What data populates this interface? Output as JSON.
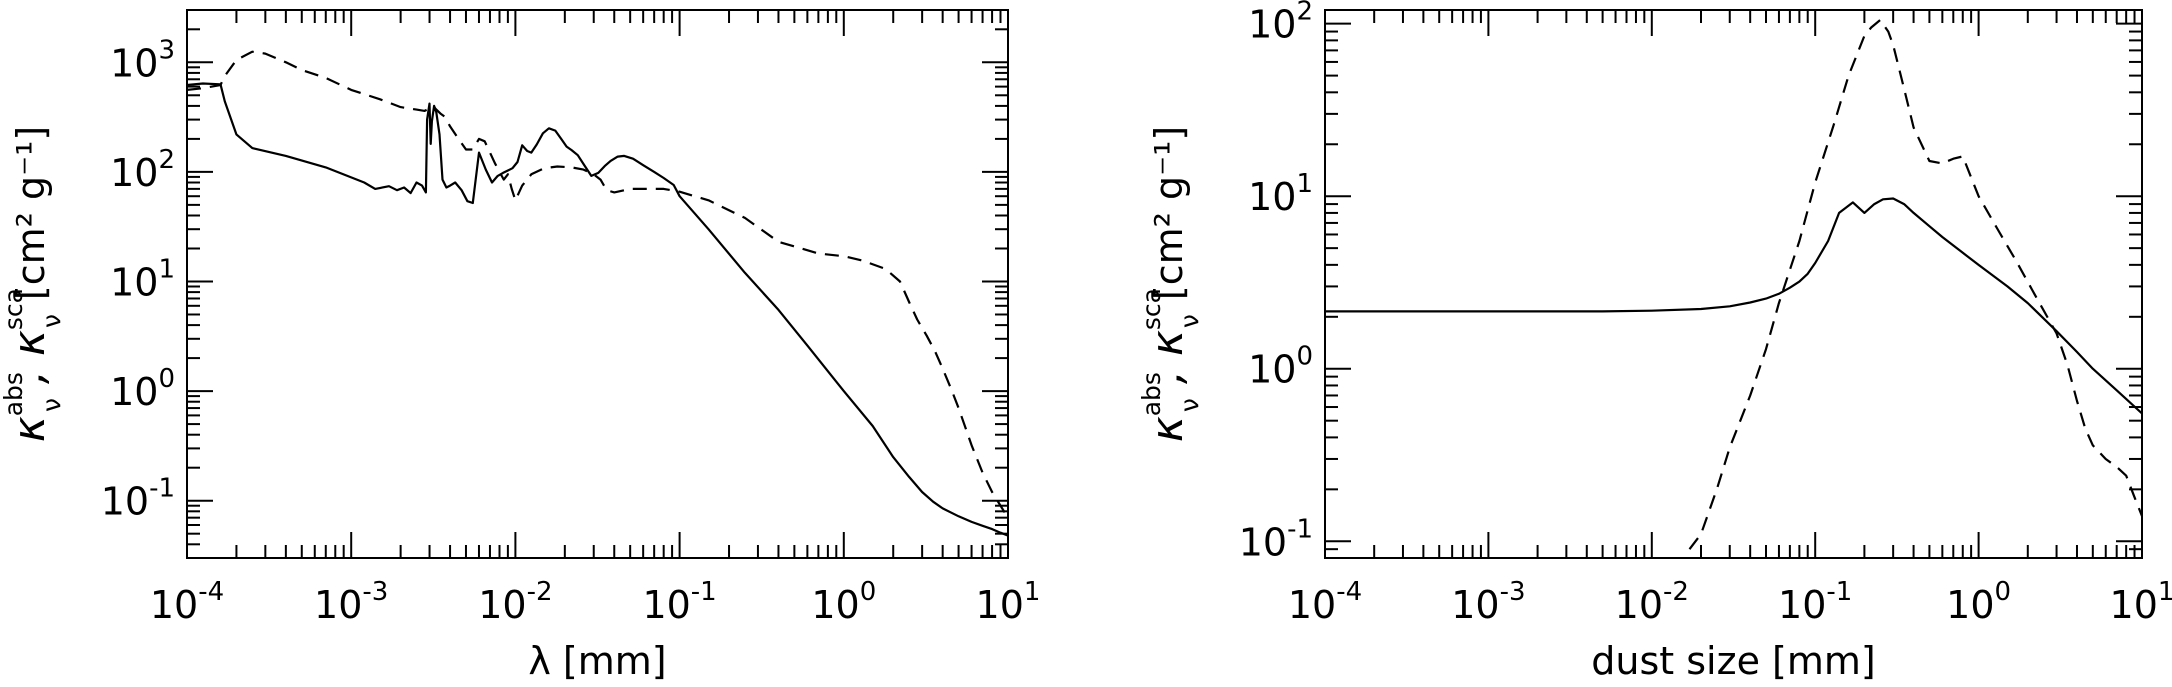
{
  "chart_data": [
    {
      "type": "line",
      "xlabel": "λ [mm]",
      "ylabel": {
        "symbol_abs": "κ",
        "sub_abs": "ν",
        "sup_abs": "abs",
        "separator": ",",
        "symbol_sca": "κ",
        "sub_sca": "ν",
        "sup_sca": "sca",
        "units": "[cm² g⁻¹]"
      },
      "xscale": "log",
      "yscale": "log",
      "xlim": [
        0.0001,
        10
      ],
      "ylim": [
        0.03,
        3000
      ],
      "xticks": [
        {
          "value": 0.0001,
          "base": "10",
          "exp": "-4"
        },
        {
          "value": 0.001,
          "base": "10",
          "exp": "-3"
        },
        {
          "value": 0.01,
          "base": "10",
          "exp": "-2"
        },
        {
          "value": 0.1,
          "base": "10",
          "exp": "-1"
        },
        {
          "value": 1,
          "base": "10",
          "exp": "0"
        },
        {
          "value": 10,
          "base": "10",
          "exp": "1"
        }
      ],
      "yticks": [
        {
          "value": 0.1,
          "base": "10",
          "exp": "-1"
        },
        {
          "value": 1,
          "base": "10",
          "exp": "0"
        },
        {
          "value": 10,
          "base": "10",
          "exp": "1"
        },
        {
          "value": 100,
          "base": "10",
          "exp": "2"
        },
        {
          "value": 1000,
          "base": "10",
          "exp": "3"
        }
      ],
      "series": [
        {
          "style": "solid",
          "x": [
            0.0001,
            0.000125,
            0.00016,
            0.00017,
            0.0002,
            0.00025,
            0.0004,
            0.0007,
            0.0012,
            0.0014,
            0.0017,
            0.0019,
            0.0021,
            0.0023,
            0.0025,
            0.0027,
            0.00285,
            0.0029,
            0.003,
            0.00305,
            0.0031,
            0.0032,
            0.0033,
            0.00345,
            0.0036,
            0.0038,
            0.004,
            0.0043,
            0.0047,
            0.0051,
            0.0055,
            0.006,
            0.0066,
            0.0072,
            0.0078,
            0.0084,
            0.009,
            0.0096,
            0.0103,
            0.011,
            0.0118,
            0.0125,
            0.0135,
            0.0147,
            0.016,
            0.0175,
            0.019,
            0.0205,
            0.022,
            0.024,
            0.026,
            0.029,
            0.032,
            0.035,
            0.038,
            0.042,
            0.046,
            0.052,
            0.06,
            0.07,
            0.08,
            0.092,
            0.1,
            0.15,
            0.25,
            0.4,
            0.6,
            1.0,
            1.5,
            2.0,
            2.5,
            3.0,
            3.5,
            4.0,
            5.0,
            6.0,
            7.0,
            8.0,
            9.0,
            10.0
          ],
          "y": [
            620,
            640,
            630,
            440,
            220,
            165,
            140,
            110,
            80,
            70,
            74,
            68,
            72,
            64,
            80,
            75,
            65,
            300,
            420,
            180,
            290,
            400,
            350,
            220,
            85,
            72,
            75,
            80,
            68,
            54,
            52,
            150,
            105,
            80,
            92,
            98,
            103,
            108,
            123,
            175,
            155,
            150,
            178,
            225,
            250,
            238,
            200,
            170,
            158,
            142,
            118,
            92,
            98,
            113,
            126,
            138,
            140,
            132,
            115,
            100,
            88,
            76,
            60,
            30,
            12,
            5.5,
            2.6,
            1.0,
            0.48,
            0.25,
            0.165,
            0.12,
            0.098,
            0.085,
            0.072,
            0.064,
            0.059,
            0.055,
            0.051,
            0.048
          ]
        },
        {
          "style": "dashed",
          "x": [
            0.0001,
            0.000125,
            0.00016,
            0.00017,
            0.0002,
            0.00025,
            0.0003,
            0.0004,
            0.0005,
            0.0007,
            0.001,
            0.0015,
            0.002,
            0.0025,
            0.0028,
            0.0029,
            0.003,
            0.0031,
            0.0032,
            0.0033,
            0.0035,
            0.0037,
            0.004,
            0.0045,
            0.005,
            0.0055,
            0.006,
            0.0065,
            0.007,
            0.0075,
            0.008,
            0.0085,
            0.009,
            0.0095,
            0.01,
            0.011,
            0.0125,
            0.015,
            0.018,
            0.022,
            0.026,
            0.03,
            0.033,
            0.036,
            0.04,
            0.05,
            0.065,
            0.08,
            0.1,
            0.15,
            0.25,
            0.4,
            0.7,
            1.0,
            1.3,
            1.8,
            2.2,
            2.5,
            2.8,
            3.2,
            3.6,
            4.0,
            4.5,
            5.0,
            6.0,
            7.0,
            8.0,
            9.0,
            10.0
          ],
          "y": [
            560,
            580,
            620,
            750,
            1050,
            1250,
            1200,
            1000,
            850,
            720,
            560,
            460,
            390,
            370,
            360,
            370,
            380,
            400,
            390,
            370,
            340,
            320,
            260,
            200,
            160,
            160,
            200,
            190,
            150,
            120,
            100,
            85,
            95,
            70,
            55,
            75,
            95,
            108,
            112,
            110,
            105,
            95,
            85,
            68,
            65,
            70,
            70,
            70,
            66,
            55,
            38,
            23,
            18,
            17,
            15.5,
            13,
            10,
            6.5,
            4.5,
            3.2,
            2.3,
            1.6,
            1.05,
            0.7,
            0.32,
            0.18,
            0.12,
            0.09,
            0.07
          ]
        }
      ]
    },
    {
      "type": "line",
      "xlabel": "dust size [mm]",
      "ylabel": {
        "symbol_abs": "κ",
        "sub_abs": "ν",
        "sup_abs": "abs",
        "separator": ",",
        "symbol_sca": "κ",
        "sub_sca": "ν",
        "sup_sca": "sca",
        "units": "[cm² g⁻¹]"
      },
      "xscale": "log",
      "yscale": "log",
      "xlim": [
        0.0001,
        10
      ],
      "ylim": [
        0.08,
        120
      ],
      "xticks": [
        {
          "value": 0.0001,
          "base": "10",
          "exp": "-4"
        },
        {
          "value": 0.001,
          "base": "10",
          "exp": "-3"
        },
        {
          "value": 0.01,
          "base": "10",
          "exp": "-2"
        },
        {
          "value": 0.1,
          "base": "10",
          "exp": "-1"
        },
        {
          "value": 1,
          "base": "10",
          "exp": "0"
        },
        {
          "value": 10,
          "base": "10",
          "exp": "1"
        }
      ],
      "yticks": [
        {
          "value": 0.1,
          "base": "10",
          "exp": "-1"
        },
        {
          "value": 1,
          "base": "10",
          "exp": "0"
        },
        {
          "value": 10,
          "base": "10",
          "exp": "1"
        },
        {
          "value": 100,
          "base": "10",
          "exp": "2"
        }
      ],
      "series": [
        {
          "style": "solid",
          "x": [
            0.0001,
            0.001,
            0.005,
            0.01,
            0.02,
            0.03,
            0.04,
            0.05,
            0.06,
            0.07,
            0.08,
            0.09,
            0.1,
            0.12,
            0.14,
            0.17,
            0.2,
            0.23,
            0.26,
            0.3,
            0.35,
            0.4,
            0.5,
            0.6,
            0.8,
            1.0,
            1.5,
            2.0,
            3.0,
            4.0,
            5.0,
            7.0,
            10.0
          ],
          "y": [
            2.15,
            2.15,
            2.15,
            2.17,
            2.22,
            2.3,
            2.42,
            2.55,
            2.72,
            2.95,
            3.2,
            3.55,
            4.1,
            5.5,
            8.0,
            9.2,
            8.0,
            9.0,
            9.6,
            9.7,
            9.0,
            8.0,
            6.7,
            5.8,
            4.7,
            4.0,
            3.0,
            2.4,
            1.65,
            1.25,
            1.0,
            0.75,
            0.55
          ]
        },
        {
          "style": "dashed",
          "x": [
            0.017,
            0.02,
            0.025,
            0.03,
            0.04,
            0.05,
            0.06,
            0.08,
            0.1,
            0.13,
            0.16,
            0.2,
            0.22,
            0.25,
            0.28,
            0.3,
            0.35,
            0.4,
            0.5,
            0.6,
            0.7,
            0.8,
            1.0,
            1.3,
            1.7,
            2.2,
            3.0,
            3.5,
            4.0,
            4.5,
            5.0,
            6.0,
            7.0,
            8.0,
            9.0,
            10.0
          ],
          "y": [
            0.09,
            0.11,
            0.2,
            0.35,
            0.7,
            1.3,
            2.4,
            5.5,
            12,
            26,
            50,
            85,
            95,
            105,
            90,
            75,
            42,
            25,
            16,
            15.5,
            16.5,
            17,
            10,
            6.5,
            4.2,
            2.7,
            1.6,
            1.05,
            0.65,
            0.45,
            0.36,
            0.3,
            0.27,
            0.24,
            0.18,
            0.14
          ]
        }
      ]
    }
  ]
}
